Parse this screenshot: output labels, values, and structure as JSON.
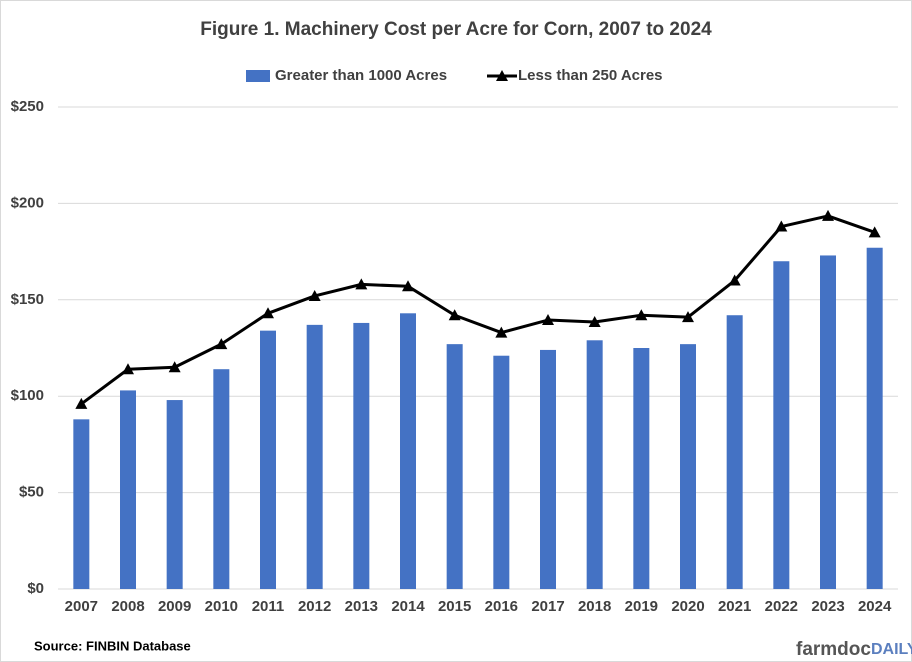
{
  "chart_data": {
    "type": "bar",
    "title": "Figure 1. Machinery Cost per Acre for Corn, 2007 to 2024",
    "categories": [
      "2007",
      "2008",
      "2009",
      "2010",
      "2011",
      "2012",
      "2013",
      "2014",
      "2015",
      "2016",
      "2017",
      "2018",
      "2019",
      "2020",
      "2021",
      "2022",
      "2023",
      "2024"
    ],
    "series": [
      {
        "name": "Greater than 1000 Acres",
        "type": "bar",
        "color": "#4472c4",
        "values": [
          88,
          103,
          98,
          114,
          134,
          137,
          138,
          143,
          127,
          121,
          124,
          129,
          125,
          127,
          142,
          170,
          173,
          177
        ]
      },
      {
        "name": "Less than 250 Acres",
        "type": "line",
        "color": "#000000",
        "values": [
          96,
          114,
          115,
          127,
          143,
          152,
          158,
          157,
          142,
          133,
          139.5,
          138.5,
          142,
          141,
          160,
          188,
          193.5,
          185
        ]
      }
    ],
    "ylim": [
      0,
      250
    ],
    "yticks": [
      {
        "value": 0,
        "label": "$0"
      },
      {
        "value": 50,
        "label": "$50"
      },
      {
        "value": 100,
        "label": "$100"
      },
      {
        "value": 150,
        "label": "$150"
      },
      {
        "value": 200,
        "label": "$200"
      },
      {
        "value": 250,
        "label": "$250"
      }
    ],
    "grid": true,
    "legend": "top",
    "source": "Source:  FINBIN Database",
    "logo": [
      "farmdoc",
      "DAILY"
    ]
  }
}
